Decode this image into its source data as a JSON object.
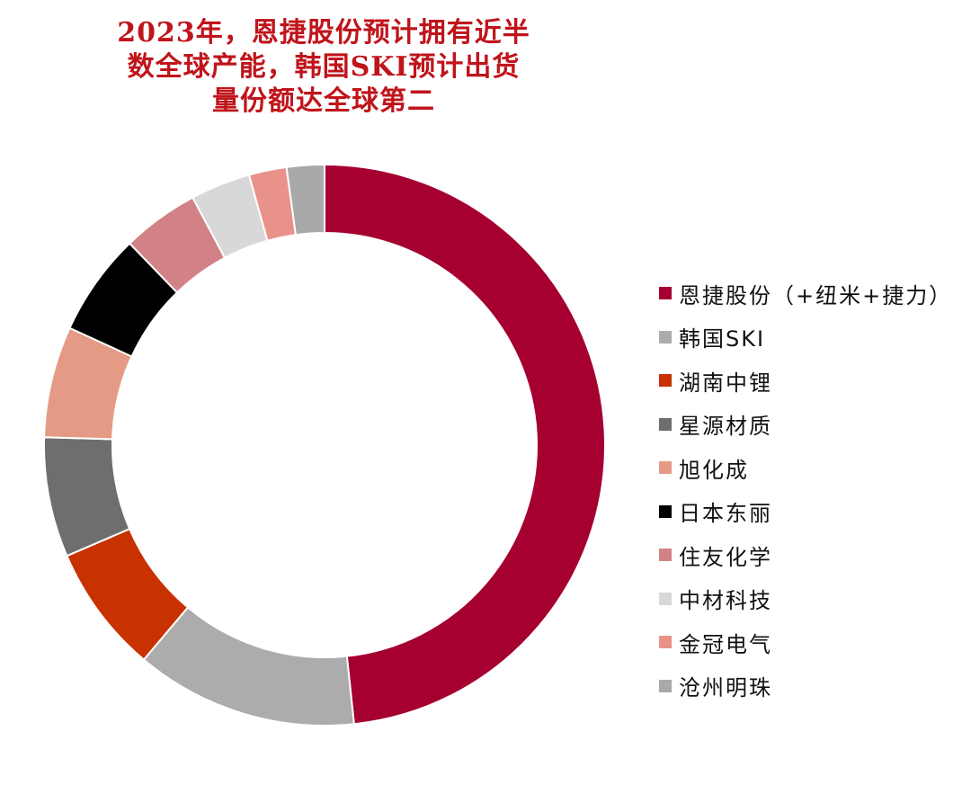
{
  "title_lines": [
    "2023年，恩捷股份预计拥有近半",
    "数全球产能，韩国SKI预计出货",
    "量份额达全球第二"
  ],
  "title_color": "#c0141b",
  "chart_data": {
    "type": "pie",
    "subtype": "donut",
    "title": "2023年，恩捷股份预计拥有近半数全球产能，韩国SKI预计出货量份额达全球第二",
    "legend_position": "right",
    "series": [
      {
        "name": "恩捷股份（+纽米+捷力）",
        "value": 49.0,
        "color": "#a50030"
      },
      {
        "name": "韩国SKI",
        "value": 13.0,
        "color": "#acacac"
      },
      {
        "name": "湖南中锂",
        "value": 7.5,
        "color": "#c83200"
      },
      {
        "name": "星源材质",
        "value": 7.0,
        "color": "#6e6e6e"
      },
      {
        "name": "旭化成",
        "value": 6.5,
        "color": "#e49a84"
      },
      {
        "name": "日本东丽",
        "value": 6.0,
        "color": "#000000"
      },
      {
        "name": "住友化学",
        "value": 4.5,
        "color": "#d28286"
      },
      {
        "name": "中材科技",
        "value": 3.5,
        "color": "#d8d8d8"
      },
      {
        "name": "金冠电气",
        "value": 2.2,
        "color": "#e8928a"
      },
      {
        "name": "沧州明珠",
        "value": 2.2,
        "color": "#a9a9a9"
      }
    ]
  }
}
